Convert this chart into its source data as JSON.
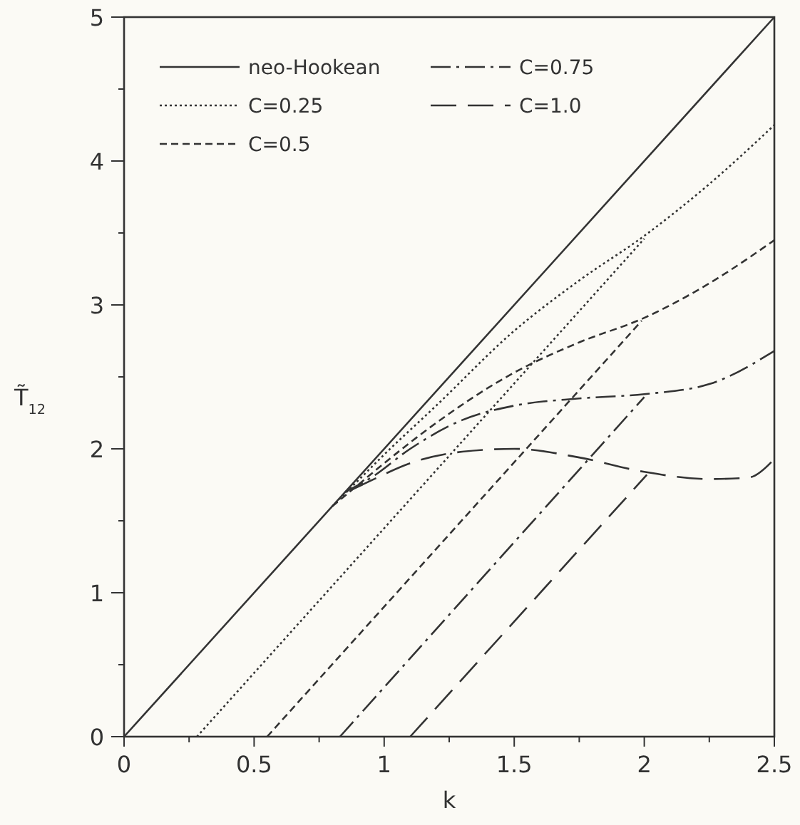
{
  "chart_data": {
    "type": "line",
    "xlabel": "k",
    "ylabel": "T̃$_{12}$",
    "xlim": [
      0,
      2.5
    ],
    "ylim": [
      0,
      5
    ],
    "xticks": [
      0,
      {
        "value": 0.25,
        "label": null
      },
      0.5,
      {
        "value": 0.75,
        "label": null
      },
      1,
      {
        "value": 1.25,
        "label": null
      },
      1.5,
      {
        "value": 1.75,
        "label": null
      },
      2,
      {
        "value": 2.25,
        "label": null
      },
      2.5
    ],
    "yticks": [
      0,
      {
        "value": 0.5,
        "label": null
      },
      1,
      {
        "value": 1.5,
        "label": null
      },
      2,
      {
        "value": 2.5,
        "label": null
      },
      3,
      {
        "value": 3.5,
        "label": null
      },
      4,
      {
        "value": 4.5,
        "label": null
      },
      5
    ],
    "grid": false,
    "legend": "top left",
    "series": [
      {
        "name": "neo-Hookean",
        "color": "#333333",
        "line_style": "solid",
        "x": [
          0,
          2.5
        ],
        "values": [
          0,
          5
        ]
      },
      {
        "name": "C=0.25",
        "color": "#333333",
        "line_style": "dotted",
        "x": [
          0.8,
          0.9,
          1.0,
          1.2,
          1.5,
          1.75,
          2.0,
          2.25,
          2.5
        ],
        "values": [
          1.6,
          1.78,
          1.96,
          2.3,
          2.82,
          3.17,
          3.48,
          3.84,
          4.25
        ]
      },
      {
        "name": "C=0.5",
        "color": "#333333",
        "line_style": "dashed",
        "x": [
          0.8,
          0.9,
          1.0,
          1.2,
          1.5,
          1.75,
          2.0,
          2.25,
          2.5
        ],
        "values": [
          1.6,
          1.75,
          1.9,
          2.18,
          2.53,
          2.74,
          2.91,
          3.15,
          3.45
        ]
      },
      {
        "name": "C=0.75",
        "color": "#333333",
        "line_style": "dashdot",
        "x": [
          0.85,
          0.95,
          1.1,
          1.3,
          1.5,
          1.75,
          2.0,
          2.25,
          2.5
        ],
        "values": [
          1.7,
          1.8,
          2.0,
          2.2,
          2.3,
          2.35,
          2.38,
          2.45,
          2.68
        ]
      },
      {
        "name": "C=1.0",
        "color": "#333333",
        "line_style": "longdash",
        "x": [
          0.88,
          0.95,
          1.1,
          1.3,
          1.5,
          1.75,
          2.0,
          2.25,
          2.4,
          2.5
        ],
        "values": [
          1.72,
          1.78,
          1.9,
          1.98,
          2.0,
          1.94,
          1.84,
          1.79,
          1.8,
          1.93
        ]
      },
      {
        "color": "#333333",
        "line_style": "dotted",
        "x": [
          0.28,
          2.0
        ],
        "values": [
          0,
          3.46
        ]
      },
      {
        "color": "#333333",
        "line_style": "dashed",
        "x": [
          0.55,
          1.99
        ],
        "values": [
          0,
          2.89
        ]
      },
      {
        "color": "#333333",
        "line_style": "dashdot",
        "x": [
          0.83,
          2.0
        ],
        "values": [
          0,
          2.36
        ]
      },
      {
        "color": "#333333",
        "line_style": "longdash",
        "x": [
          1.1,
          2.01
        ],
        "values": [
          0,
          1.82
        ]
      }
    ]
  }
}
